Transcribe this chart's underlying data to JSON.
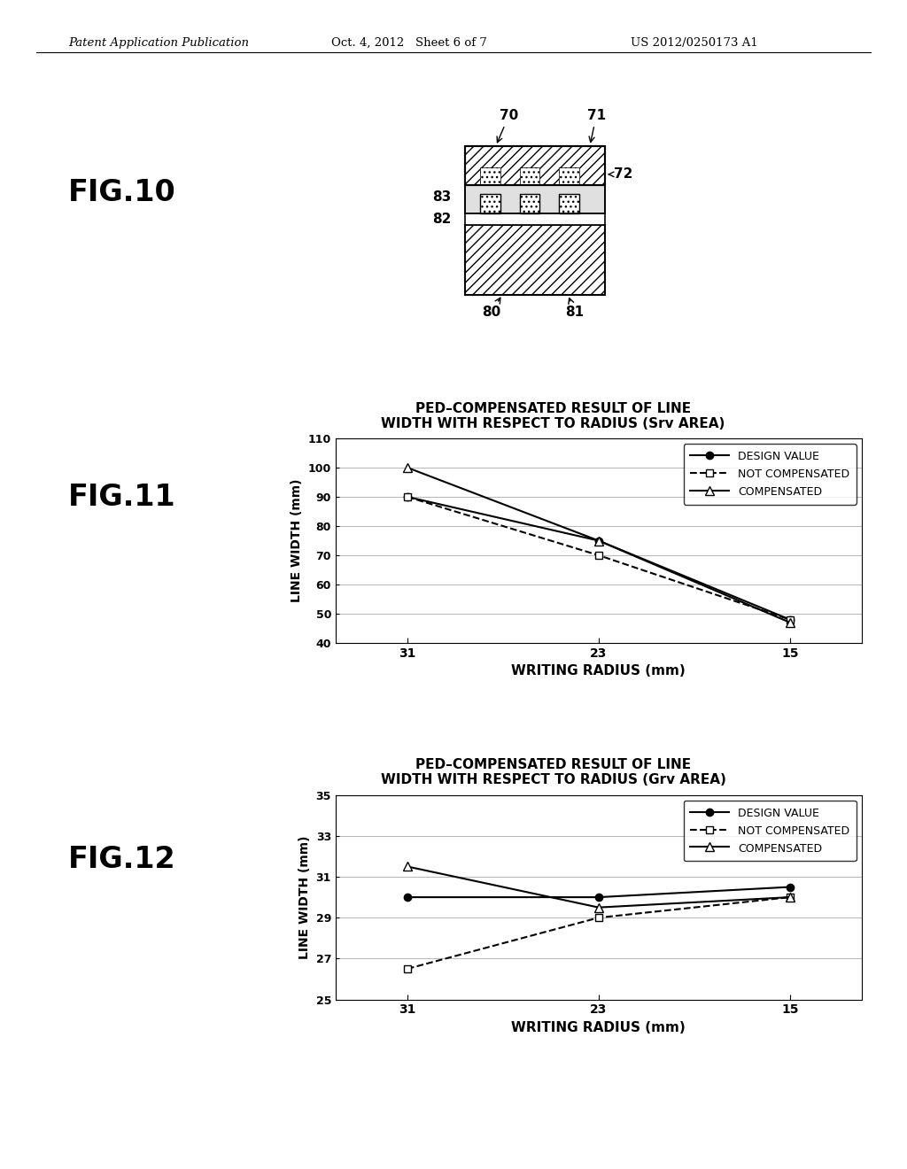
{
  "header_left": "Patent Application Publication",
  "header_mid": "Oct. 4, 2012   Sheet 6 of 7",
  "header_right": "US 2012/0250173 A1",
  "fig10_label": "FIG.10",
  "fig11_label": "FIG.11",
  "fig12_label": "FIG.12",
  "fig11_title_line1": "PED–COMPENSATED RESULT OF LINE",
  "fig11_title_line2": "WIDTH WITH RESPECT TO RADIUS (Srv AREA)",
  "fig12_title_line1": "PED–COMPENSATED RESULT OF LINE",
  "fig12_title_line2": "WIDTH WITH RESPECT TO RADIUS (Grv AREA)",
  "x_values": [
    31,
    23,
    15
  ],
  "xlabel": "WRITING RADIUS (mm)",
  "ylabel": "LINE WIDTH (mm)",
  "fig11_design": [
    90,
    75,
    48
  ],
  "fig11_not_comp": [
    90,
    70,
    48
  ],
  "fig11_comp": [
    100,
    75,
    47
  ],
  "fig11_ylim": [
    40,
    110
  ],
  "fig11_yticks": [
    40,
    50,
    60,
    70,
    80,
    90,
    100,
    110
  ],
  "fig12_design": [
    30,
    30,
    30.5
  ],
  "fig12_not_comp": [
    26.5,
    29,
    30
  ],
  "fig12_comp": [
    31.5,
    29.5,
    30
  ],
  "fig12_ylim": [
    25,
    35
  ],
  "fig12_yticks": [
    25,
    27,
    29,
    31,
    33,
    35
  ],
  "legend_design": "DESIGN VALUE",
  "legend_not_comp": "NOT COMPENSATED",
  "legend_comp": "COMPENSATED",
  "bg_color": "#ffffff",
  "line_color": "#000000"
}
